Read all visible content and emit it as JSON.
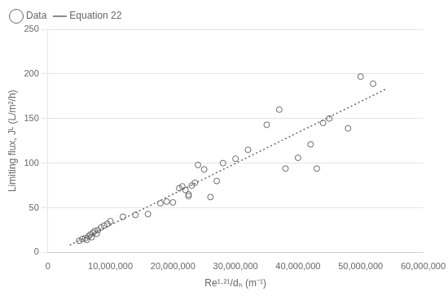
{
  "chart_data": {
    "type": "scatter",
    "xlabel": "Re¹·²¹/dₕ (m⁻¹)",
    "ylabel": "Limiting flux, Jᴸ (L/m²/h)",
    "series": [
      {
        "name": "Data",
        "type": "scatter",
        "color": "#666666",
        "marker": "circle",
        "x": [
          5000000,
          5500000,
          6000000,
          6200000,
          6500000,
          6800000,
          7000000,
          7200000,
          7500000,
          7800000,
          8000000,
          8500000,
          9000000,
          9500000,
          10000000,
          12000000,
          14000000,
          16000000,
          18000000,
          19000000,
          20000000,
          21000000,
          21500000,
          22000000,
          22500000,
          22500000,
          23000000,
          23500000,
          24000000,
          25000000,
          26000000,
          27000000,
          28000000,
          30000000,
          32000000,
          35000000,
          37000000,
          38000000,
          40000000,
          42000000,
          43000000,
          44000000,
          45000000,
          48000000,
          50000000,
          52000000
        ],
        "values": [
          13,
          15,
          16,
          14,
          18,
          20,
          17,
          22,
          24,
          21,
          25,
          28,
          30,
          32,
          35,
          40,
          42,
          43,
          55,
          57,
          56,
          72,
          74,
          70,
          65,
          63,
          75,
          78,
          98,
          93,
          62,
          80,
          100,
          105,
          115,
          143,
          160,
          94,
          106,
          121,
          94,
          145,
          150,
          139,
          197,
          189
        ]
      },
      {
        "name": "Equation 22",
        "type": "line",
        "color": "#666666",
        "line_style": "dotted",
        "x": [
          3500000,
          54000000
        ],
        "values": [
          8.11,
          182.84
        ]
      }
    ],
    "xlim": [
      0,
      60000000
    ],
    "ylim": [
      0,
      250
    ],
    "xticks": [
      0,
      {
        "value": 10000000,
        "label": "10,000,000"
      },
      {
        "value": 20000000,
        "label": "20,000,000"
      },
      {
        "value": 30000000,
        "label": "30,000,000"
      },
      {
        "value": 40000000,
        "label": "40,000,000"
      },
      {
        "value": 50000000,
        "label": "50,000,000"
      },
      {
        "value": 60000000,
        "label": "60,000,000"
      }
    ],
    "yticks": [
      0,
      50,
      100,
      150,
      200,
      250
    ],
    "grid": "y",
    "legend": "upper left"
  }
}
